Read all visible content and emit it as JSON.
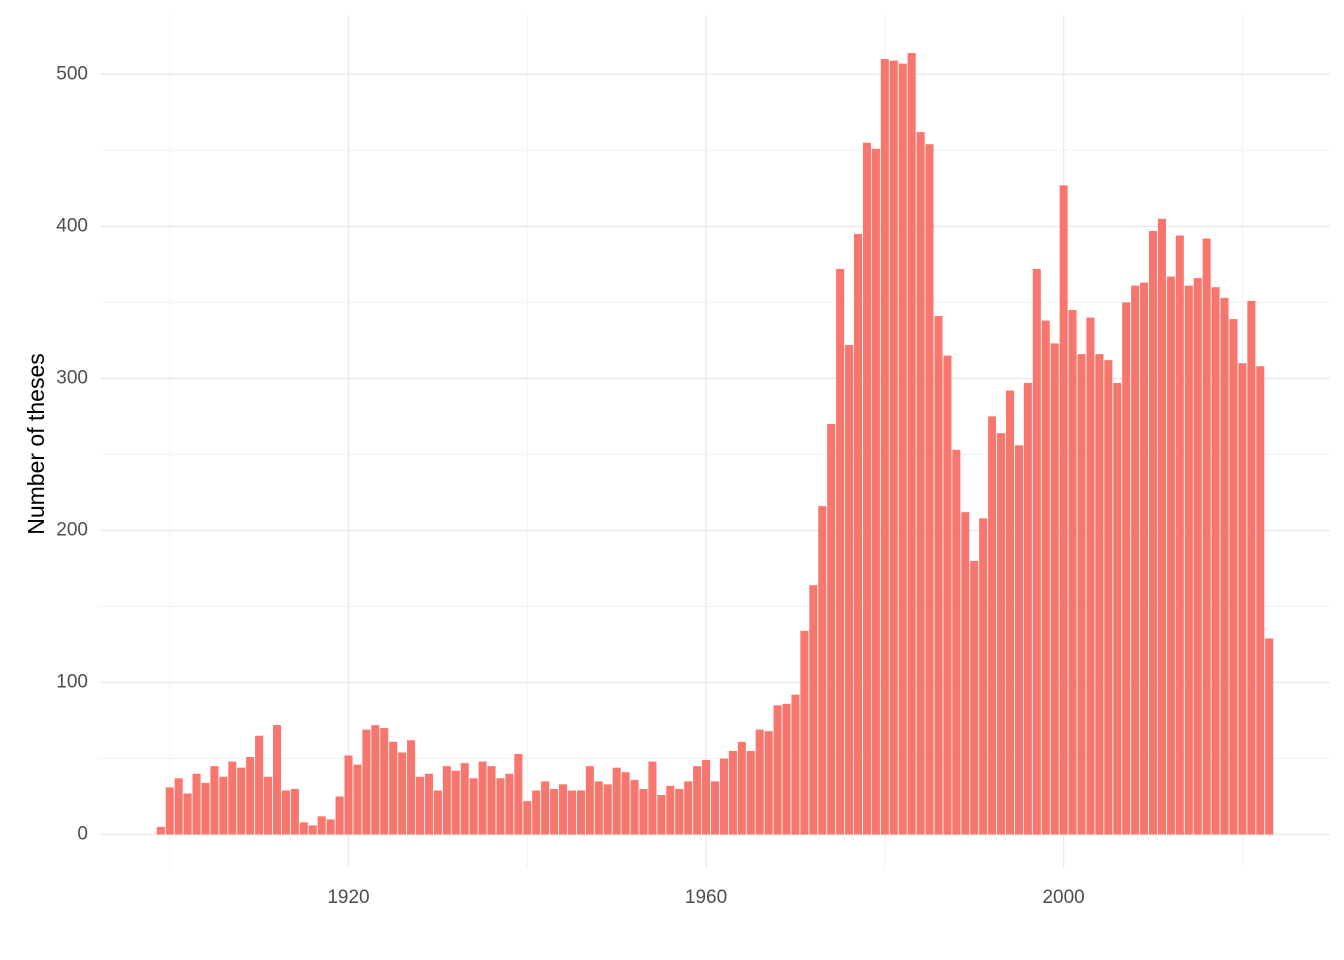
{
  "chart_data": {
    "type": "bar",
    "y_label": "Number of theses",
    "color": "#f8766d",
    "grid": true,
    "x": [
      1899,
      1900,
      1901,
      1902,
      1903,
      1904,
      1905,
      1906,
      1907,
      1908,
      1909,
      1910,
      1911,
      1912,
      1913,
      1914,
      1915,
      1916,
      1917,
      1918,
      1919,
      1920,
      1921,
      1922,
      1923,
      1924,
      1925,
      1926,
      1927,
      1928,
      1929,
      1930,
      1931,
      1932,
      1933,
      1934,
      1935,
      1936,
      1937,
      1938,
      1939,
      1940,
      1941,
      1942,
      1943,
      1944,
      1945,
      1946,
      1947,
      1948,
      1949,
      1950,
      1951,
      1952,
      1953,
      1954,
      1955,
      1956,
      1957,
      1958,
      1959,
      1960,
      1961,
      1962,
      1963,
      1964,
      1965,
      1966,
      1967,
      1968,
      1969,
      1970,
      1971,
      1972,
      1973,
      1974,
      1975,
      1976,
      1977,
      1978,
      1979,
      1980,
      1981,
      1982,
      1983,
      1984,
      1985,
      1986,
      1987,
      1988,
      1989,
      1990,
      1991,
      1992,
      1993,
      1994,
      1995,
      1996,
      1997,
      1998,
      1999,
      2000,
      2001,
      2002,
      2003,
      2004,
      2005,
      2006,
      2007,
      2008,
      2009,
      2010,
      2011,
      2012,
      2013,
      2014,
      2015,
      2016,
      2017,
      2018,
      2019,
      2020,
      2021,
      2022,
      2023
    ],
    "values": [
      5,
      31,
      37,
      27,
      40,
      34,
      45,
      38,
      48,
      44,
      51,
      65,
      38,
      72,
      29,
      30,
      8,
      6,
      12,
      10,
      25,
      52,
      46,
      69,
      72,
      70,
      61,
      54,
      62,
      38,
      40,
      29,
      45,
      42,
      47,
      37,
      48,
      45,
      37,
      40,
      53,
      22,
      29,
      35,
      30,
      33,
      29,
      29,
      45,
      35,
      33,
      44,
      41,
      36,
      30,
      48,
      26,
      32,
      30,
      35,
      45,
      49,
      35,
      50,
      55,
      61,
      55,
      69,
      68,
      85,
      86,
      92,
      134,
      164,
      216,
      270,
      372,
      322,
      395,
      455,
      451,
      510,
      509,
      507,
      514,
      462,
      454,
      341,
      315,
      253,
      212,
      180,
      208,
      275,
      264,
      292,
      256,
      297,
      372,
      338,
      323,
      427,
      345,
      316,
      340,
      316,
      312,
      297,
      350,
      361,
      363,
      397,
      405,
      367,
      394,
      361,
      366,
      392,
      360,
      353,
      339,
      310,
      351,
      308,
      129
    ],
    "xlim": [
      1892.2,
      2029.8
    ],
    "ylim": [
      -22,
      539
    ],
    "xticks": [
      1920,
      1960,
      2000
    ],
    "yticks": [
      0,
      100,
      200,
      300,
      400,
      500
    ],
    "xticks_minor": [
      1900,
      1940,
      1980,
      2020
    ],
    "yticks_minor": [
      50,
      150,
      250,
      350,
      450
    ]
  }
}
